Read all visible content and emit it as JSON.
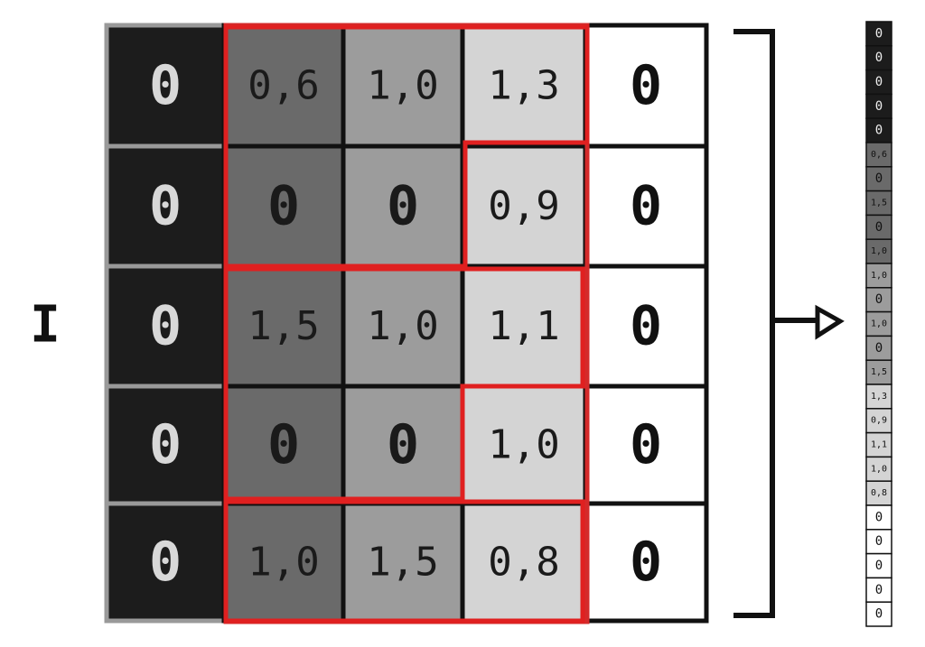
{
  "label": "I",
  "grid": {
    "rows": [
      [
        "0",
        "0,6",
        "1,0",
        "1,3",
        "0"
      ],
      [
        "0",
        "0",
        "0",
        "0,9",
        "0"
      ],
      [
        "0",
        "1,5",
        "1,0",
        "1,1",
        "0"
      ],
      [
        "0",
        "0",
        "0",
        "1,0",
        "0"
      ],
      [
        "0",
        "1,0",
        "1,5",
        "0,8",
        "0"
      ]
    ]
  },
  "strip": {
    "cells": [
      "0",
      "0",
      "0",
      "0",
      "0",
      "0,6",
      "0",
      "1,5",
      "0",
      "1,0",
      "1,0",
      "0",
      "1,0",
      "0",
      "1,5",
      "1,3",
      "0,9",
      "1,1",
      "1,0",
      "0,8",
      "0",
      "0",
      "0",
      "0",
      "0"
    ]
  }
}
